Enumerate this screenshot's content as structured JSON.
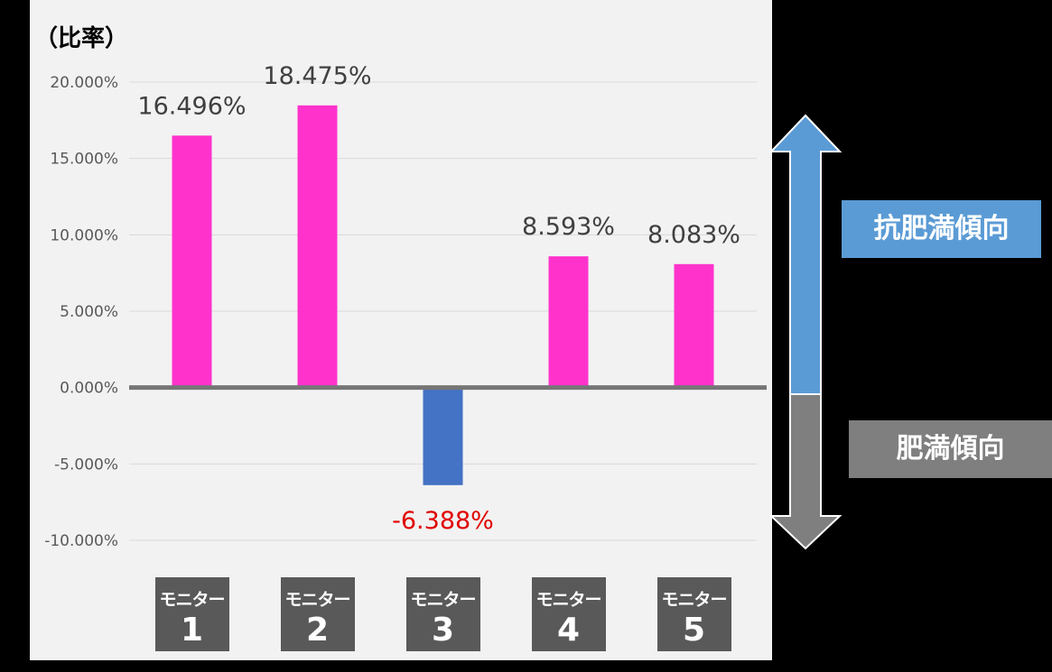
{
  "chart_data": {
    "type": "bar",
    "ylabel": "（比率）",
    "ylim": [
      -10,
      20
    ],
    "ytick_labels": [
      "20.000%",
      "15.000%",
      "10.000%",
      "5.000%",
      "0.000%",
      "-5.000%",
      "-10.000%"
    ],
    "ytick_values": [
      20,
      15,
      10,
      5,
      0,
      -5,
      -10
    ],
    "grid": true,
    "categories": [
      {
        "name": "モニター",
        "number": "1"
      },
      {
        "name": "モニター",
        "number": "2"
      },
      {
        "name": "モニター",
        "number": "3"
      },
      {
        "name": "モニター",
        "number": "4"
      },
      {
        "name": "モニター",
        "number": "5"
      }
    ],
    "values": [
      16.496,
      18.475,
      -6.388,
      8.593,
      8.083
    ],
    "data_labels": [
      "16.496%",
      "18.475%",
      "-6.388%",
      "8.593%",
      "8.083%"
    ],
    "colors": {
      "positive": "#ff33cc",
      "negative": "#4472c4",
      "negative_label": "#e00000",
      "label": "#404040",
      "grid": "#d9d9d9",
      "zero_line": "#767676"
    }
  },
  "legend": {
    "up_label": "抗肥満傾向",
    "down_label": "肥満傾向",
    "up_color": "#5b9bd5",
    "down_color": "#7f7f7f"
  }
}
